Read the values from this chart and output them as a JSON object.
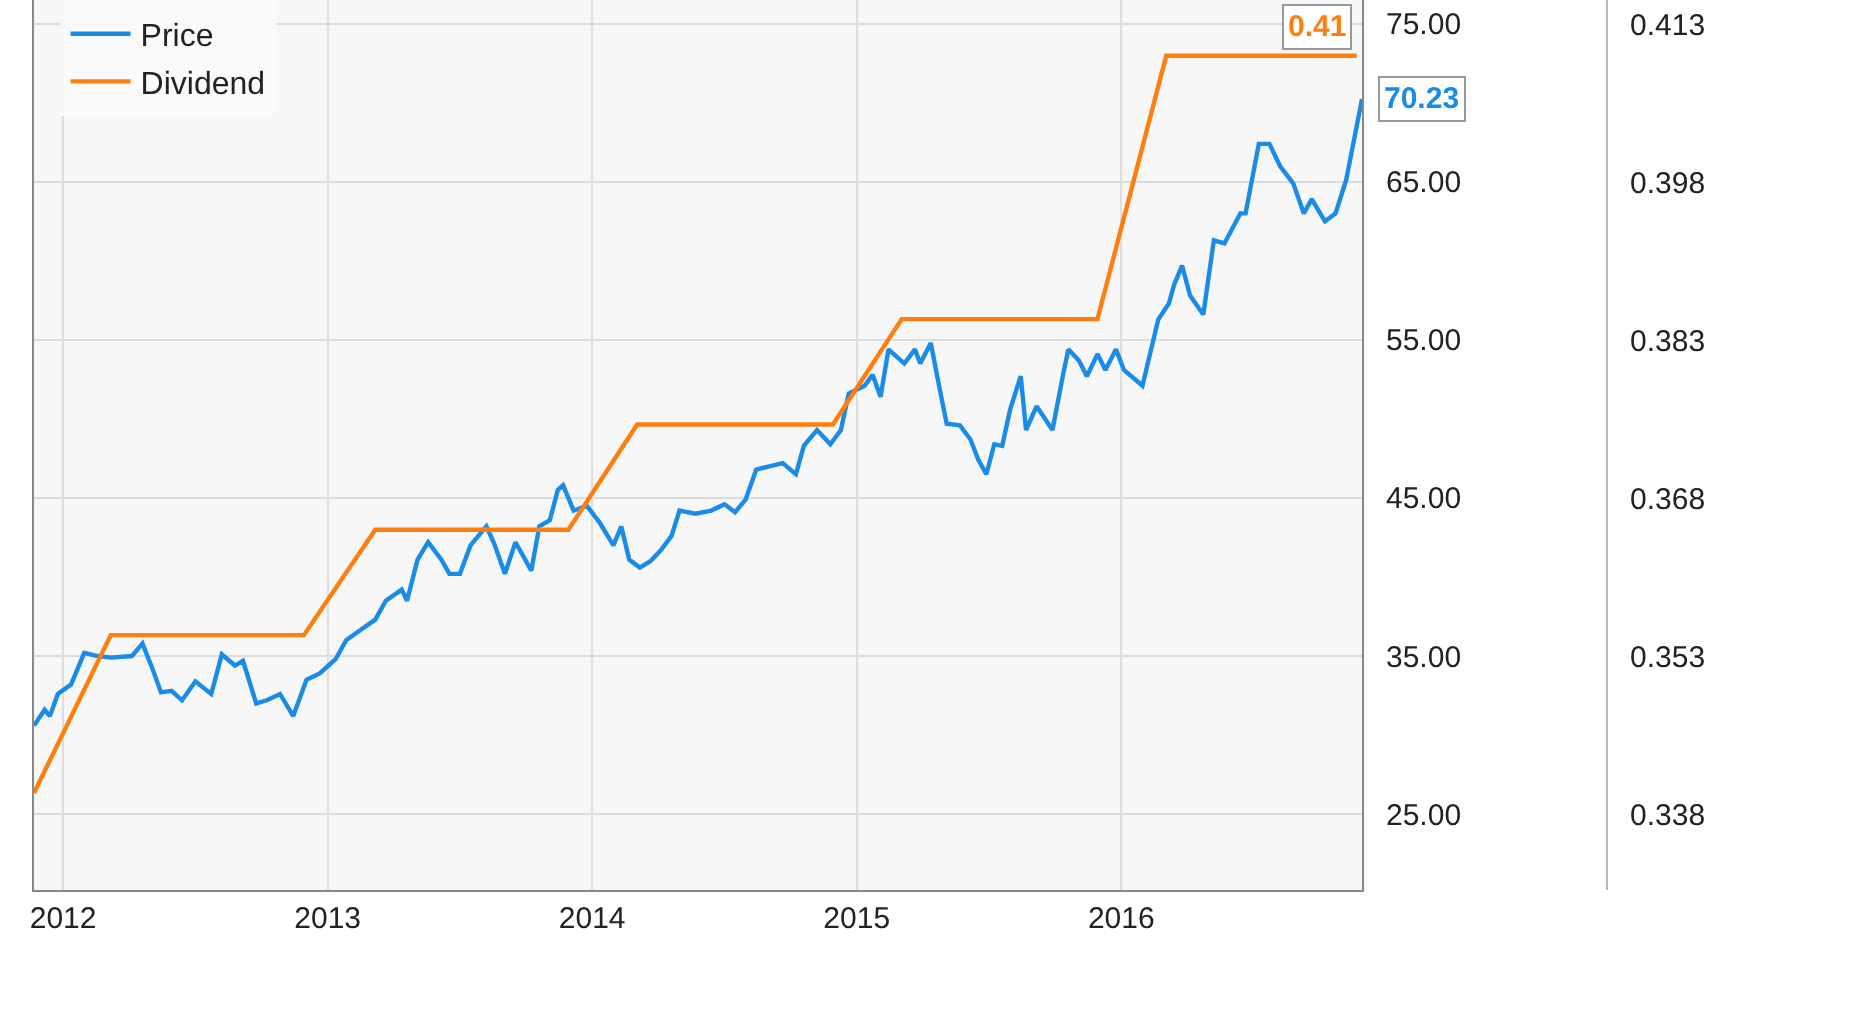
{
  "chart_data": {
    "type": "line",
    "x": [
      2011.89,
      2011.93,
      2011.95,
      2011.98,
      2012.03,
      2012.08,
      2012.13,
      2012.18,
      2012.26,
      2012.3,
      2012.34,
      2012.37,
      2012.41,
      2012.45,
      2012.5,
      2012.56,
      2012.6,
      2012.65,
      2012.68,
      2012.73,
      2012.77,
      2012.82,
      2012.87,
      2012.92,
      2012.97,
      2013.03,
      2013.07,
      2013.12,
      2013.18,
      2013.22,
      2013.28,
      2013.3,
      2013.34,
      2013.38,
      2013.43,
      2013.46,
      2013.5,
      2013.54,
      2013.6,
      2013.63,
      2013.67,
      2013.71,
      2013.77,
      2013.8,
      2013.84,
      2013.87,
      2013.89,
      2013.93,
      2013.98,
      2014.03,
      2014.08,
      2014.11,
      2014.14,
      2014.18,
      2014.22,
      2014.26,
      2014.3,
      2014.33,
      2014.39,
      2014.45,
      2014.5,
      2014.54,
      2014.58,
      2014.62,
      2014.67,
      2014.72,
      2014.77,
      2014.8,
      2014.85,
      2014.9,
      2014.94,
      2014.97,
      2015.03,
      2015.06,
      2015.09,
      2015.12,
      2015.18,
      2015.22,
      2015.24,
      2015.28,
      2015.31,
      2015.34,
      2015.39,
      2015.43,
      2015.46,
      2015.49,
      2015.52,
      2015.55,
      2015.58,
      2015.62,
      2015.64,
      2015.68,
      2015.74,
      2015.78,
      2015.8,
      2015.84,
      2015.87,
      2015.91,
      2015.94,
      2015.98,
      2016.01,
      2016.08,
      2016.14,
      2016.18,
      2016.2,
      2016.23,
      2016.26,
      2016.31,
      2016.35,
      2016.39,
      2016.45,
      2016.47,
      2016.52,
      2016.56,
      2016.6,
      2016.65,
      2016.69,
      2016.72,
      2016.77,
      2016.81,
      2016.85,
      2016.91
    ],
    "series": [
      {
        "name": "Price",
        "color": "#1a8be6",
        "values": [
          30.6,
          31.6,
          31.2,
          32.6,
          33.2,
          35.2,
          35.0,
          34.9,
          35.0,
          35.8,
          34.1,
          32.7,
          32.8,
          32.2,
          33.4,
          32.6,
          35.1,
          34.4,
          34.7,
          32.0,
          32.2,
          32.6,
          31.2,
          33.5,
          33.9,
          34.8,
          36.0,
          36.6,
          37.3,
          38.5,
          39.2,
          38.5,
          41.1,
          42.2,
          41.1,
          40.2,
          40.2,
          42.0,
          43.2,
          42.1,
          40.2,
          42.2,
          40.4,
          43.2,
          43.6,
          45.5,
          45.8,
          44.2,
          44.5,
          43.4,
          42.0,
          43.2,
          41.1,
          40.6,
          41.0,
          41.7,
          42.6,
          44.2,
          44.0,
          44.2,
          44.6,
          44.1,
          44.9,
          46.8,
          47.0,
          47.2,
          46.5,
          48.3,
          49.3,
          48.4,
          49.3,
          51.6,
          52.1,
          52.8,
          51.4,
          54.4,
          53.5,
          54.4,
          53.5,
          54.8,
          52.2,
          49.7,
          49.6,
          48.7,
          47.4,
          46.5,
          48.4,
          48.3,
          50.6,
          52.7,
          49.3,
          50.8,
          49.3,
          52.8,
          54.4,
          53.7,
          52.7,
          54.1,
          53.1,
          54.4,
          53.1,
          52.1,
          56.3,
          57.3,
          58.5,
          59.7,
          57.8,
          56.6,
          61.3,
          61.1,
          63.0,
          63.0,
          67.4,
          67.4,
          66.0,
          64.9,
          63.0,
          63.9,
          62.5,
          63.0,
          65.1,
          70.23
        ],
        "value_labels": [
          null,
          null,
          null,
          null,
          null,
          null,
          null,
          null,
          null,
          null,
          null,
          null,
          null,
          null,
          null,
          null,
          null,
          null,
          null,
          null,
          null,
          null,
          null,
          null,
          null,
          null,
          null,
          null,
          null,
          null,
          null,
          null,
          null,
          null,
          null,
          null,
          null,
          null,
          null,
          null,
          null,
          null,
          null,
          null,
          null,
          null,
          null,
          null,
          null,
          null,
          null,
          null,
          null,
          null,
          null,
          null,
          null,
          null,
          null,
          null,
          null,
          null,
          null,
          null,
          null,
          null,
          null,
          null,
          null,
          null,
          null,
          null,
          null,
          null,
          null,
          null,
          null,
          null,
          null,
          null,
          null,
          null,
          null,
          null,
          null,
          null,
          null,
          null,
          null,
          null,
          null,
          null,
          null,
          null,
          null,
          null,
          null,
          null,
          null,
          null,
          null,
          null,
          null,
          null,
          null,
          null,
          null,
          null,
          null,
          null,
          null,
          null,
          null,
          null,
          null,
          null,
          null,
          null,
          null,
          null,
          null,
          "70.23"
        ]
      },
      {
        "name": "Dividend",
        "color": "#ff7f0e",
        "axis": "y2",
        "x": [
          2011.89,
          2012.18,
          2012.91,
          2013.18,
          2013.91,
          2014.17,
          2014.91,
          2015.17,
          2015.91,
          2016.17,
          2016.89
        ],
        "values": [
          0.34,
          0.355,
          0.355,
          0.365,
          0.365,
          0.375,
          0.375,
          0.385,
          0.385,
          0.41,
          0.41
        ],
        "value_labels": [
          null,
          null,
          null,
          null,
          null,
          null,
          null,
          null,
          null,
          null,
          "0.41"
        ]
      }
    ],
    "xlim": [
      2011.89,
      2016.91
    ],
    "xticks": [
      2012,
      2013,
      2014,
      2015,
      2016
    ],
    "ylim": [
      20.2,
      76.5
    ],
    "yticks": [
      {
        "value": 25,
        "label": "25.00"
      },
      {
        "value": 35,
        "label": "35.00"
      },
      {
        "value": 45,
        "label": "45.00"
      },
      {
        "value": 55,
        "label": "55.00"
      },
      {
        "value": 65,
        "label": "65.00"
      },
      {
        "value": 75,
        "label": "75.00"
      }
    ],
    "y2lim": [
      0.3308,
      0.4153
    ],
    "y2ticks": [
      0.338,
      0.353,
      0.368,
      0.383,
      0.398,
      0.413
    ],
    "grid": true,
    "legend": "top left",
    "marker": "none",
    "line_style": "solid"
  }
}
